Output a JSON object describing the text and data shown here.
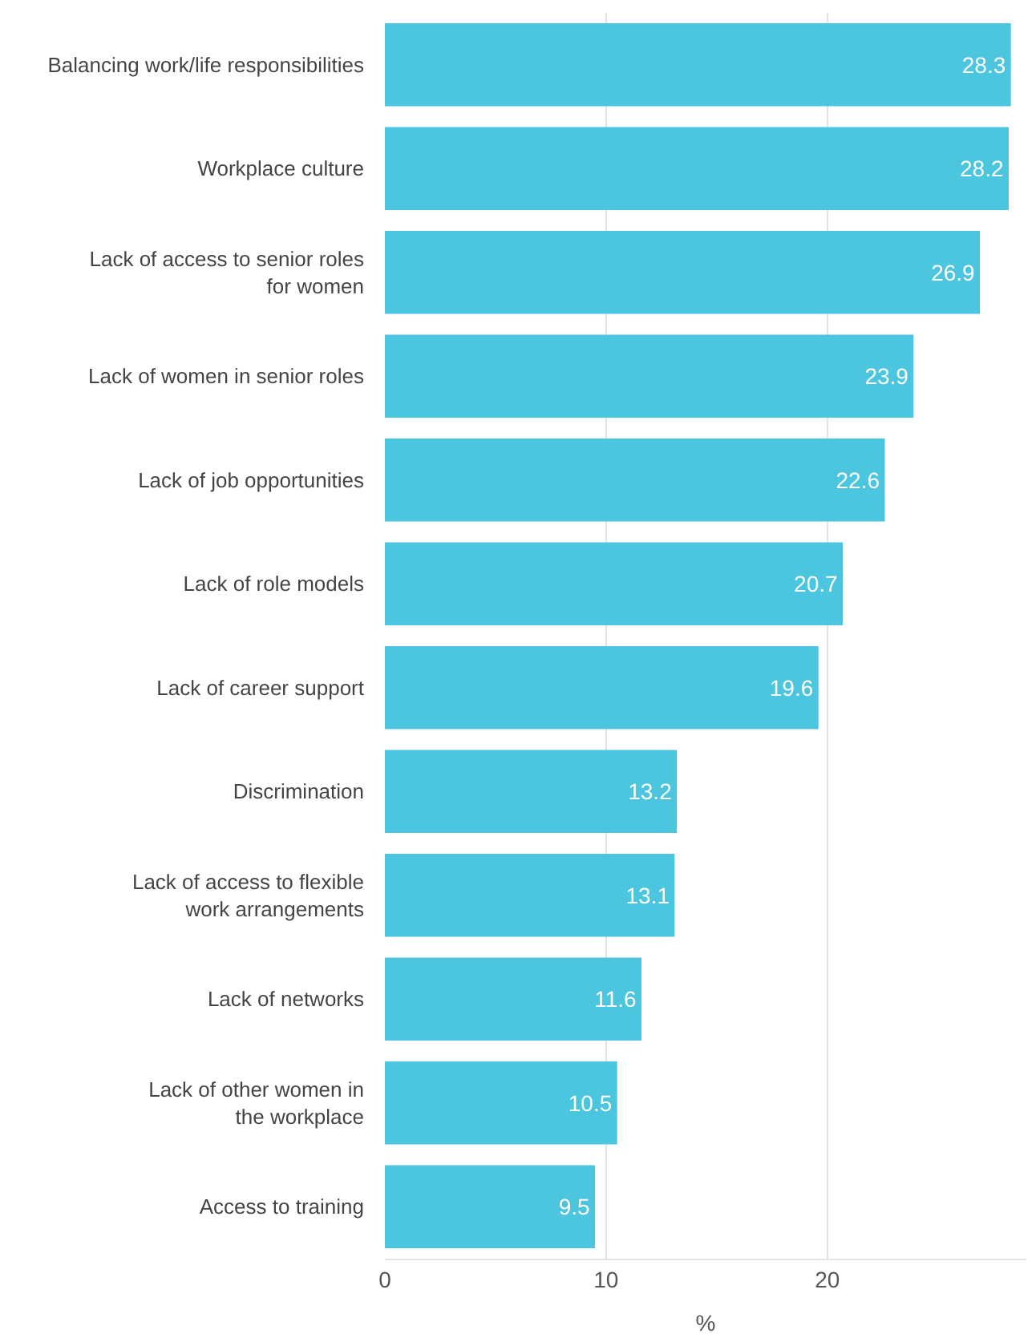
{
  "chart_data": {
    "type": "bar",
    "orientation": "horizontal",
    "xlabel": "%",
    "categories": [
      "Balancing work/life responsibilities",
      "Workplace culture",
      "Lack of access to senior roles\nfor women",
      "Lack of women in senior roles",
      "Lack of job opportunities",
      "Lack of role models",
      "Lack of career support",
      "Discrimination",
      "Lack of access to flexible\nwork arrangements",
      "Lack of networks",
      "Lack of other women in\nthe workplace",
      "Access to training"
    ],
    "values": [
      28.3,
      28.2,
      26.9,
      23.9,
      22.6,
      20.7,
      19.6,
      13.2,
      13.1,
      11.6,
      10.5,
      9.5
    ],
    "color": "#4cc5de",
    "data_labels": true,
    "xlim": [
      0,
      29
    ],
    "xticks": [
      0,
      10,
      20
    ],
    "grid": "x",
    "legend": false
  }
}
